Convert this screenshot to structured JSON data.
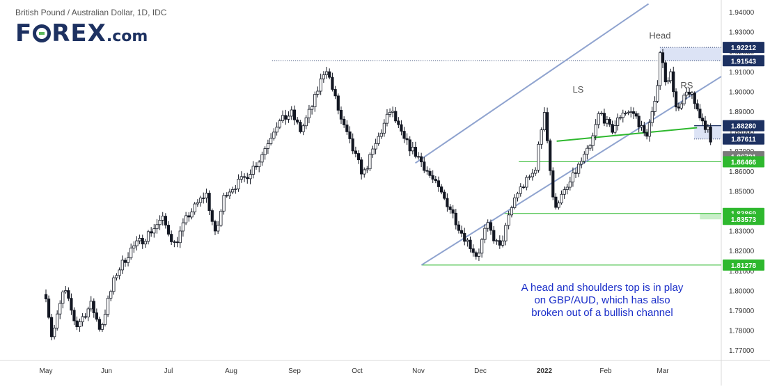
{
  "header": {
    "title": "British Pound / Australian Dollar, 1D, IDC"
  },
  "brand": {
    "logo_text_main": "F",
    "logo_text_rest": "REX",
    "logo_suffix": ".com"
  },
  "note": {
    "line1": "A head and shoulders top is in play",
    "line2": "on GBP/AUD, which has also",
    "line3": "broken out of a bullish channel"
  },
  "colors": {
    "up": "#131722",
    "down": "#131722",
    "channel": "#8fa3cf",
    "support": "#2eb82e",
    "zone": "#dce3f5",
    "text_note": "#1a2ec9",
    "axis_text": "#333333",
    "label_dark": "#1d3161"
  },
  "chart_data": {
    "type": "candlestick",
    "title": "British Pound / Australian Dollar, 1D, IDC",
    "y_range": [
      1.765,
      1.945
    ],
    "y_ticks": [
      "1.94000",
      "1.93000",
      "1.92000",
      "1.91000",
      "1.90000",
      "1.89000",
      "1.88000",
      "1.87000",
      "1.86000",
      "1.85000",
      "1.84000",
      "1.83000",
      "1.82000",
      "1.81000",
      "1.80000",
      "1.79000",
      "1.78000",
      "1.77000"
    ],
    "x_ticks": [
      "May",
      "Jun",
      "Jul",
      "Aug",
      "Sep",
      "Oct",
      "Nov",
      "Dec",
      "2022",
      "Feb",
      "Mar"
    ],
    "price_labels": [
      {
        "text": "1.92212",
        "value": 1.92212,
        "style": "dark"
      },
      {
        "text": "1.91543",
        "value": 1.91543,
        "style": "dark"
      },
      {
        "text": "1.88280",
        "value": 1.8828,
        "style": "dark"
      },
      {
        "text": "1.87611",
        "value": 1.87611,
        "style": "dark"
      },
      {
        "text": "1.86721",
        "value": 1.86721,
        "style": "gray"
      },
      {
        "text": "1.86466",
        "value": 1.86466,
        "style": "green"
      },
      {
        "text": "1.83869",
        "value": 1.83869,
        "style": "green"
      },
      {
        "text": "1.83573",
        "value": 1.83573,
        "style": "green"
      },
      {
        "text": "1.81278",
        "value": 1.81278,
        "style": "green"
      }
    ],
    "annotations": [
      {
        "text": "Head",
        "month": 9.95,
        "value": 1.9265
      },
      {
        "text": "LS",
        "month": 8.55,
        "value": 1.8995
      },
      {
        "text": "RS",
        "month": 10.42,
        "value": 1.9015
      }
    ],
    "anchors": [
      [
        0.0,
        1.798
      ],
      [
        0.1,
        1.776
      ],
      [
        0.3,
        1.801
      ],
      [
        0.5,
        1.782
      ],
      [
        0.75,
        1.793
      ],
      [
        0.9,
        1.78
      ],
      [
        1.0,
        1.792
      ],
      [
        1.15,
        1.808
      ],
      [
        1.4,
        1.821
      ],
      [
        1.6,
        1.826
      ],
      [
        1.9,
        1.836
      ],
      [
        2.1,
        1.823
      ],
      [
        2.3,
        1.837
      ],
      [
        2.6,
        1.849
      ],
      [
        2.75,
        1.827
      ],
      [
        2.9,
        1.849
      ],
      [
        3.2,
        1.856
      ],
      [
        3.45,
        1.866
      ],
      [
        3.7,
        1.883
      ],
      [
        3.95,
        1.889
      ],
      [
        4.1,
        1.88
      ],
      [
        4.3,
        1.894
      ],
      [
        4.5,
        1.913
      ],
      [
        4.75,
        1.885
      ],
      [
        4.95,
        1.869
      ],
      [
        5.1,
        1.858
      ],
      [
        5.35,
        1.877
      ],
      [
        5.55,
        1.891
      ],
      [
        5.75,
        1.876
      ],
      [
        6.0,
        1.867
      ],
      [
        6.3,
        1.852
      ],
      [
        6.5,
        1.842
      ],
      [
        6.7,
        1.829
      ],
      [
        6.95,
        1.817
      ],
      [
        7.1,
        1.833
      ],
      [
        7.3,
        1.821
      ],
      [
        7.55,
        1.848
      ],
      [
        7.85,
        1.86
      ],
      [
        8.0,
        1.891
      ],
      [
        8.15,
        1.842
      ],
      [
        8.35,
        1.85
      ],
      [
        8.55,
        1.862
      ],
      [
        8.75,
        1.872
      ],
      [
        8.9,
        1.89
      ],
      [
        9.1,
        1.88
      ],
      [
        9.3,
        1.89
      ],
      [
        9.5,
        1.889
      ],
      [
        9.7,
        1.877
      ],
      [
        9.88,
        1.895
      ],
      [
        9.95,
        1.921
      ],
      [
        10.05,
        1.906
      ],
      [
        10.15,
        1.909
      ],
      [
        10.25,
        1.888
      ],
      [
        10.45,
        1.901
      ],
      [
        10.65,
        1.888
      ],
      [
        10.8,
        1.88
      ],
      [
        10.88,
        1.865
      ]
    ]
  }
}
